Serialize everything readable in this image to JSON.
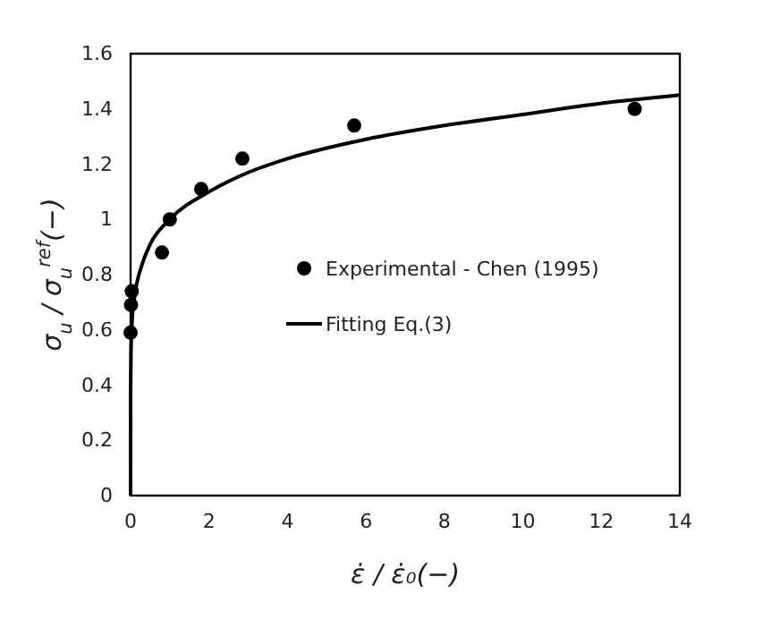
{
  "chart_data": {
    "type": "scatter",
    "xlabel": "ε̇ / ε̇₀(−)",
    "ylabel": "σ$_{u}$ / σ$_{u}$$^{ref}$(−)",
    "xlim": [
      0,
      14
    ],
    "xticks": [
      0,
      2,
      4,
      6,
      8,
      10,
      12,
      14
    ],
    "ylim": [
      0,
      1.6
    ],
    "yticks": [
      0,
      0.2,
      0.4,
      0.6,
      0.8,
      1,
      1.2,
      1.4,
      1.6
    ],
    "grid": false,
    "legend": "right",
    "series": [
      {
        "name": "Experimental - Chen (1995)",
        "marker": "circle",
        "color": "#000000",
        "x": [
          0,
          0.01,
          0.03,
          0.8,
          1,
          1.8,
          2.85,
          5.7,
          12.85
        ],
        "values": [
          0.59,
          0.69,
          0.74,
          0.88,
          1.0,
          1.11,
          1.22,
          1.34,
          1.4
        ]
      },
      {
        "name": "Fitting Eq.(3)",
        "type": "line",
        "marker": "none",
        "line_style": "solid",
        "color": "#000000",
        "x": [
          0,
          0.001,
          0.01,
          0.05,
          0.1,
          0.3,
          0.5,
          1,
          2,
          3,
          4,
          6,
          8,
          10,
          12,
          14
        ],
        "values": [
          0,
          0.38,
          0.52,
          0.66,
          0.72,
          0.84,
          0.91,
          1.0,
          1.1,
          1.17,
          1.22,
          1.29,
          1.34,
          1.38,
          1.42,
          1.45
        ]
      }
    ]
  }
}
